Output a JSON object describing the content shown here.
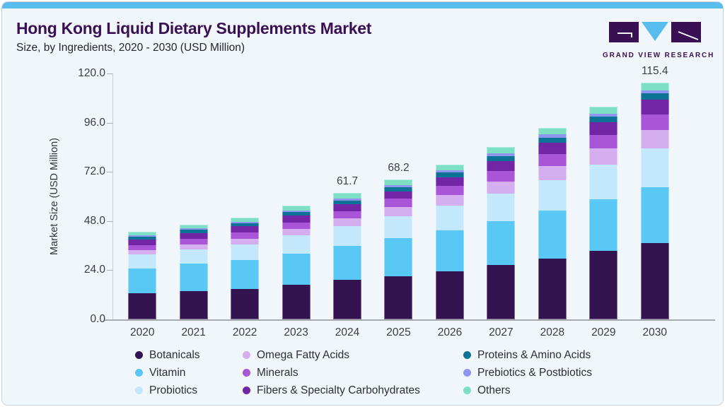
{
  "header": {
    "title": "Hong Kong Liquid Dietary Supplements Market",
    "subtitle": "Size, by Ingredients, 2020 - 2030 (USD Million)"
  },
  "logo": {
    "brand": "GRAND VIEW RESEARCH",
    "mark_purple": "#3a1054",
    "mark_cyan": "#58bdec"
  },
  "chart_data": {
    "type": "bar",
    "stacked": true,
    "title": "Hong Kong Liquid Dietary Supplements Market Size, by Ingredients, 2020 - 2030 (USD Million)",
    "xlabel": "",
    "ylabel": "Market Size (USD Million)",
    "ylim": [
      0,
      120
    ],
    "yticks": [
      {
        "value": 120,
        "label": "120.0"
      },
      {
        "value": 96,
        "label": "96.0"
      },
      {
        "value": 72,
        "label": "72.0"
      },
      {
        "value": 48,
        "label": "48.0"
      },
      {
        "value": 24,
        "label": "24.0"
      },
      {
        "value": 0,
        "label": "0.0"
      }
    ],
    "grid": false,
    "legend_position": "bottom",
    "categories": [
      "2020",
      "2021",
      "2022",
      "2023",
      "2024",
      "2025",
      "2026",
      "2027",
      "2028",
      "2029",
      "2030"
    ],
    "series": [
      {
        "name": "Botanicals",
        "color": "#331450",
        "values": [
          12.8,
          13.9,
          15.0,
          16.9,
          19.2,
          21.1,
          23.6,
          26.5,
          29.8,
          33.4,
          37.2
        ]
      },
      {
        "name": "Vitamin",
        "color": "#5ac8f5",
        "values": [
          12.2,
          13.2,
          14.0,
          15.2,
          16.6,
          18.4,
          19.8,
          21.4,
          23.2,
          25.3,
          27.4
        ]
      },
      {
        "name": "Probiotics",
        "color": "#c3e8fb",
        "values": [
          6.6,
          7.1,
          7.7,
          8.8,
          9.9,
          11.0,
          12.2,
          13.6,
          15.1,
          16.8,
          18.9
        ]
      },
      {
        "name": "Omega Fatty Acids",
        "color": "#d4aeee",
        "values": [
          2.1,
          2.4,
          2.7,
          3.1,
          3.5,
          4.3,
          5.1,
          5.9,
          6.8,
          7.8,
          9.0
        ]
      },
      {
        "name": "Minerals",
        "color": "#a855d8",
        "values": [
          2.7,
          2.8,
          3.0,
          3.3,
          3.5,
          4.0,
          4.6,
          5.2,
          5.9,
          6.7,
          7.6
        ]
      },
      {
        "name": "Fibers & Specialty Carbohydrates",
        "color": "#7226a5",
        "values": [
          2.7,
          2.8,
          3.0,
          3.3,
          3.5,
          3.6,
          4.1,
          4.7,
          5.4,
          6.1,
          7.0
        ]
      },
      {
        "name": "Proteins & Amino Acids",
        "color": "#0b7396",
        "values": [
          1.4,
          1.5,
          1.6,
          1.7,
          1.8,
          2.0,
          2.2,
          2.4,
          2.6,
          2.8,
          3.1
        ]
      },
      {
        "name": "Prebiotics & Postbiotics",
        "color": "#8f96f2",
        "values": [
          0.7,
          0.8,
          0.8,
          0.9,
          1.1,
          1.2,
          1.3,
          1.4,
          1.5,
          1.6,
          1.7
        ]
      },
      {
        "name": "Others",
        "color": "#7de0c5",
        "values": [
          1.6,
          1.7,
          2.0,
          2.3,
          2.6,
          2.6,
          2.8,
          3.0,
          3.1,
          3.3,
          3.5
        ]
      }
    ],
    "total_labels": {
      "2024": "61.7",
      "2025": "68.2",
      "2030": "115.4"
    },
    "legend_order_columns": [
      [
        "Botanicals",
        "Vitamin",
        "Probiotics"
      ],
      [
        "Omega Fatty Acids",
        "Minerals",
        "Fibers & Specialty Carbohydrates"
      ],
      [
        "Proteins & Amino Acids",
        "Prebiotics & Postbiotics",
        "Others"
      ]
    ]
  }
}
